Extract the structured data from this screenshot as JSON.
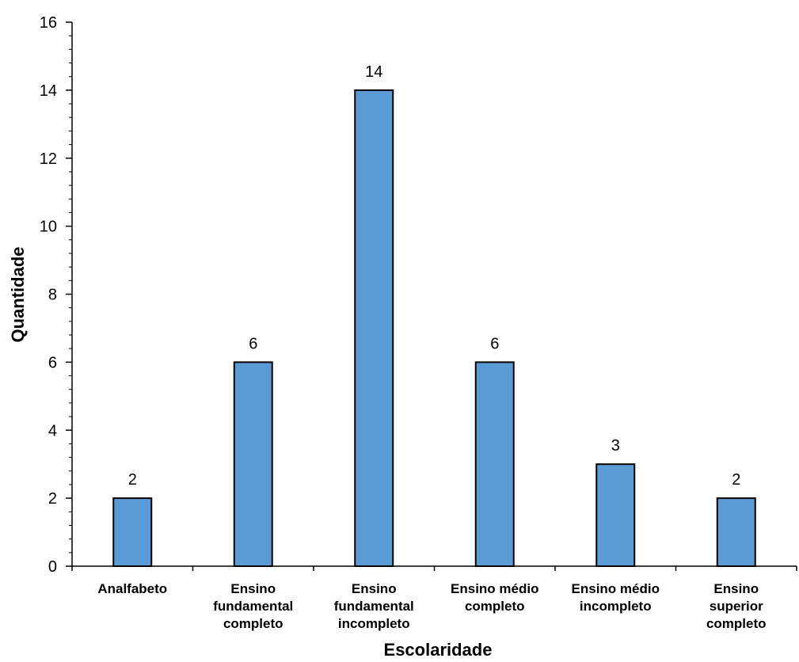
{
  "chart_data": {
    "type": "bar",
    "title": "",
    "xlabel": "Escolaridade",
    "ylabel": "Quantidade",
    "categories": [
      [
        "Analfabeto"
      ],
      [
        "Ensino",
        "fundamental",
        "completo"
      ],
      [
        "Ensino",
        "fundamental",
        "incompleto"
      ],
      [
        "Ensino médio",
        "completo"
      ],
      [
        "Ensino médio",
        "incompleto"
      ],
      [
        "Ensino",
        "superior",
        "completo"
      ]
    ],
    "values": [
      2,
      6,
      14,
      6,
      3,
      2
    ],
    "data_labels": [
      "2",
      "6",
      "14",
      "6",
      "3",
      "2"
    ],
    "ylim": [
      0,
      16
    ],
    "yticks": [
      0,
      2,
      4,
      6,
      8,
      10,
      12,
      14,
      16
    ],
    "minor_tick_step": 0.4,
    "grid": false,
    "legend": "none",
    "colors": {
      "bar_fill": "#5B9BD5",
      "bar_stroke": "#000000",
      "axis": "#000000"
    }
  }
}
